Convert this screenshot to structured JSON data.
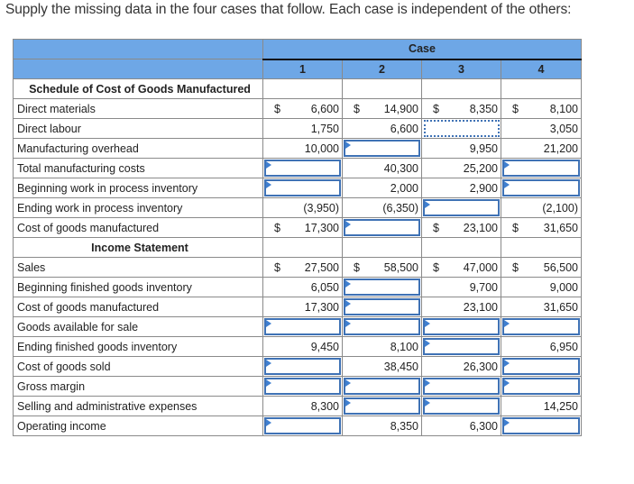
{
  "instructions": "Supply the missing data in the four cases that follow. Each case is independent of the others:",
  "header": {
    "case_label": "Case",
    "cases": [
      "1",
      "2",
      "3",
      "4"
    ]
  },
  "sections": {
    "schedule_title": "Schedule of Cost of Goods Manufactured",
    "income_title": "Income Statement"
  },
  "rows": {
    "direct_materials": {
      "label": "Direct materials",
      "values": [
        "6,600",
        "14,900",
        "8,350",
        "8,100"
      ],
      "dollar": [
        true,
        true,
        true,
        true
      ]
    },
    "direct_labour": {
      "label": "Direct labour",
      "values": [
        "1,750",
        "6,600",
        "",
        "3,050"
      ]
    },
    "manufacturing_overhead": {
      "label": "Manufacturing overhead",
      "values": [
        "10,000",
        "",
        "9,950",
        "21,200"
      ]
    },
    "total_manufacturing_costs": {
      "label": "Total manufacturing costs",
      "values": [
        "",
        "40,300",
        "25,200",
        ""
      ]
    },
    "beginning_wip": {
      "label": "Beginning work in process inventory",
      "values": [
        "",
        "2,000",
        "2,900",
        ""
      ]
    },
    "ending_wip": {
      "label": "Ending work in process inventory",
      "values": [
        "(3,950)",
        "(6,350)",
        "",
        "(2,100)"
      ]
    },
    "cogm": {
      "label": "Cost of goods manufactured",
      "values": [
        "17,300",
        "",
        "23,100",
        "31,650"
      ],
      "dollar": [
        true,
        false,
        true,
        true
      ]
    },
    "sales": {
      "label": "Sales",
      "values": [
        "27,500",
        "58,500",
        "47,000",
        "56,500"
      ],
      "dollar": [
        true,
        true,
        true,
        true
      ]
    },
    "beginning_fg": {
      "label": "Beginning finished goods inventory",
      "values": [
        "6,050",
        "",
        "9,700",
        "9,000"
      ]
    },
    "cogm_is": {
      "label": "Cost of goods manufactured",
      "values": [
        "17,300",
        "",
        "23,100",
        "31,650"
      ]
    },
    "goods_available": {
      "label": "Goods available for sale",
      "values": [
        "",
        "",
        "",
        ""
      ]
    },
    "ending_fg": {
      "label": "Ending finished goods inventory",
      "values": [
        "9,450",
        "8,100",
        "",
        "6,950"
      ]
    },
    "cogs": {
      "label": "Cost of goods sold",
      "values": [
        "",
        "38,450",
        "26,300",
        ""
      ]
    },
    "gross_margin": {
      "label": "Gross margin",
      "values": [
        "",
        "",
        "",
        ""
      ]
    },
    "selling_admin": {
      "label": "Selling and administrative expenses",
      "values": [
        "8,300",
        "",
        "",
        "14,250"
      ]
    },
    "operating_income": {
      "label": "Operating income",
      "values": [
        "",
        "8,350",
        "6,300",
        ""
      ]
    }
  },
  "currency_symbol": "$",
  "colors": {
    "header_bg": "#6ea7e6",
    "input_border": "#3f72b5"
  }
}
